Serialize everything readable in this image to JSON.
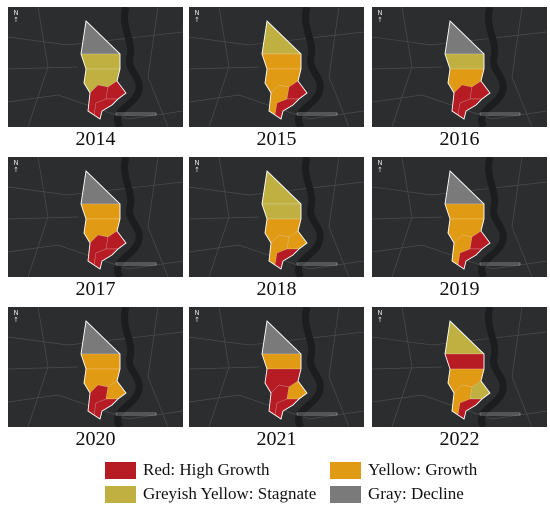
{
  "panels": [
    {
      "year": "2014",
      "north_label": "N",
      "zones": {
        "top": "gray",
        "upper": "greyish_yellow",
        "middle": "greyish_yellow",
        "lower_left": "red",
        "lower_right": "red",
        "south": "red"
      }
    },
    {
      "year": "2015",
      "north_label": "N",
      "zones": {
        "top": "greyish_yellow",
        "upper": "yellow",
        "middle": "yellow",
        "lower_left": "yellow",
        "lower_right": "red",
        "south": "red"
      }
    },
    {
      "year": "2016",
      "north_label": "N",
      "zones": {
        "top": "gray",
        "upper": "greyish_yellow",
        "middle": "yellow",
        "lower_left": "red",
        "lower_right": "red",
        "south": "red"
      }
    },
    {
      "year": "2017",
      "north_label": "N",
      "zones": {
        "top": "gray",
        "upper": "yellow",
        "middle": "yellow",
        "lower_left": "red",
        "lower_right": "red",
        "south": "red"
      }
    },
    {
      "year": "2018",
      "north_label": "N",
      "zones": {
        "top": "greyish_yellow",
        "upper": "greyish_yellow",
        "middle": "yellow",
        "lower_left": "yellow",
        "lower_right": "yellow",
        "south": "red"
      }
    },
    {
      "year": "2019",
      "north_label": "N",
      "zones": {
        "top": "gray",
        "upper": "yellow",
        "middle": "yellow",
        "lower_left": "yellow",
        "lower_right": "red",
        "south": "red"
      }
    },
    {
      "year": "2020",
      "north_label": "N",
      "zones": {
        "top": "gray",
        "upper": "yellow",
        "middle": "yellow",
        "lower_left": "red",
        "lower_right": "yellow",
        "south": "red"
      }
    },
    {
      "year": "2021",
      "north_label": "N",
      "zones": {
        "top": "gray",
        "upper": "yellow",
        "middle": "red",
        "lower_left": "red",
        "lower_right": "yellow",
        "south": "red"
      }
    },
    {
      "year": "2022",
      "north_label": "N",
      "zones": {
        "top": "greyish_yellow",
        "upper": "red",
        "middle": "yellow",
        "lower_left": "yellow",
        "lower_right": "greyish_yellow",
        "south": "red"
      }
    }
  ],
  "legend": [
    {
      "key": "red",
      "label": "Red: High Growth",
      "color": "#b71c24"
    },
    {
      "key": "yellow",
      "label": "Yellow: Growth",
      "color": "#e19a13"
    },
    {
      "key": "greyish_yellow",
      "label": "Greyish Yellow: Stagnate",
      "color": "#bfb041"
    },
    {
      "key": "gray",
      "label": "Gray: Decline",
      "color": "#7a7a7a"
    }
  ],
  "colors": {
    "map_background": "#2b2d2f",
    "river": "#1c1d1f",
    "road": "#4a4c4f",
    "outline": "#ffffff"
  }
}
